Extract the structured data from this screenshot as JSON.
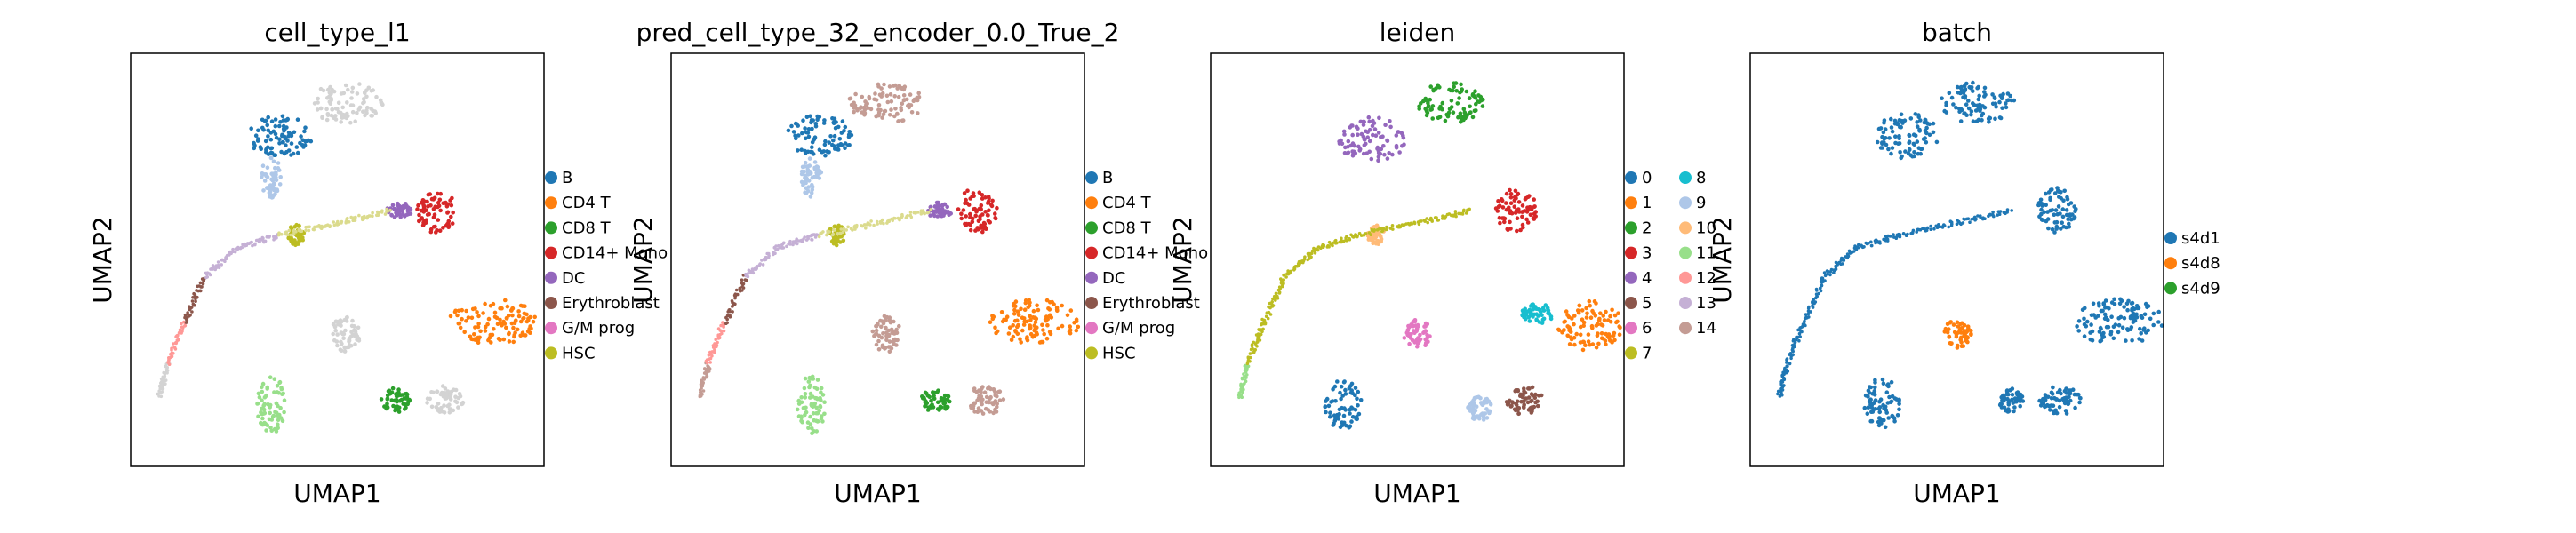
{
  "chart_data": [
    {
      "type": "scatter",
      "title": "cell_type_l1",
      "xlabel": "UMAP1",
      "ylabel": "UMAP2",
      "grid": false,
      "legend_position": "right",
      "legend": [
        {
          "label": "B",
          "color": "#1f77b4"
        },
        {
          "label": "CD4 T",
          "color": "#ff7f0e"
        },
        {
          "label": "CD8 T",
          "color": "#2ca02c"
        },
        {
          "label": "CD14+ Mono",
          "color": "#d62728"
        },
        {
          "label": "DC",
          "color": "#9467bd"
        },
        {
          "label": "Erythroblast",
          "color": "#8c564b"
        },
        {
          "label": "G/M prog",
          "color": "#e377c2"
        },
        {
          "label": "HSC",
          "color": "#bcbd22"
        }
      ],
      "clusters": [
        {
          "cx": 5.2,
          "cy": 8.8,
          "rx": 0.9,
          "ry": 0.5,
          "color": "#d3d3d3"
        },
        {
          "cx": 3.6,
          "cy": 8.0,
          "rx": 0.8,
          "ry": 0.5,
          "color": "#1f77b4"
        },
        {
          "cx": 3.4,
          "cy": 7.0,
          "rx": 0.25,
          "ry": 0.5,
          "color": "#aec7e8"
        },
        {
          "cx": 7.4,
          "cy": 6.2,
          "rx": 0.5,
          "ry": 0.55,
          "color": "#d62728"
        },
        {
          "cx": 6.5,
          "cy": 6.2,
          "rx": 0.3,
          "ry": 0.2,
          "color": "#9467bd"
        },
        {
          "cx": 4.0,
          "cy": 5.6,
          "rx": 0.2,
          "ry": 0.25,
          "color": "#bcbd22"
        },
        {
          "cx": 8.8,
          "cy": 3.5,
          "rx": 1.1,
          "ry": 0.55,
          "color": "#ff7f0e"
        },
        {
          "cx": 5.2,
          "cy": 3.2,
          "rx": 0.35,
          "ry": 0.45,
          "color": "#d3d3d3"
        },
        {
          "cx": 3.4,
          "cy": 1.5,
          "rx": 0.35,
          "ry": 0.7,
          "color": "#98df8a"
        },
        {
          "cx": 6.4,
          "cy": 1.6,
          "rx": 0.35,
          "ry": 0.3,
          "color": "#2ca02c"
        },
        {
          "cx": 7.6,
          "cy": 1.6,
          "rx": 0.45,
          "ry": 0.35,
          "color": "#d3d3d3"
        }
      ],
      "trajectory": [
        {
          "x": 0.7,
          "y": 1.7,
          "color": "#d3d3d3"
        },
        {
          "x": 0.9,
          "y": 2.5,
          "color": "#ff9896"
        },
        {
          "x": 1.3,
          "y": 3.5,
          "color": "#8c564b"
        },
        {
          "x": 1.8,
          "y": 4.6,
          "color": "#c5b0d5"
        },
        {
          "x": 2.6,
          "y": 5.3,
          "color": "#c5b0d5"
        },
        {
          "x": 3.6,
          "y": 5.6,
          "color": "#dbdb8d"
        },
        {
          "x": 5.0,
          "y": 5.9,
          "color": "#dbdb8d"
        },
        {
          "x": 6.3,
          "y": 6.2,
          "color": "#c5b0d5"
        }
      ]
    },
    {
      "type": "scatter",
      "title": "pred_cell_type_32_encoder_0.0_True_2",
      "xlabel": "UMAP1",
      "ylabel": "UMAP2",
      "grid": false,
      "legend_position": "right",
      "legend": [
        {
          "label": "B",
          "color": "#1f77b4"
        },
        {
          "label": "CD4 T",
          "color": "#ff7f0e"
        },
        {
          "label": "CD8 T",
          "color": "#2ca02c"
        },
        {
          "label": "CD14+ Mono",
          "color": "#d62728"
        },
        {
          "label": "DC",
          "color": "#9467bd"
        },
        {
          "label": "Erythroblast",
          "color": "#8c564b"
        },
        {
          "label": "G/M prog",
          "color": "#e377c2"
        },
        {
          "label": "HSC",
          "color": "#bcbd22"
        }
      ],
      "clusters": [
        {
          "cx": 5.2,
          "cy": 8.8,
          "rx": 0.9,
          "ry": 0.5,
          "color": "#c49c94"
        },
        {
          "cx": 3.6,
          "cy": 8.0,
          "rx": 0.8,
          "ry": 0.5,
          "color": "#1f77b4"
        },
        {
          "cx": 3.4,
          "cy": 7.0,
          "rx": 0.25,
          "ry": 0.5,
          "color": "#aec7e8"
        },
        {
          "cx": 7.4,
          "cy": 6.2,
          "rx": 0.5,
          "ry": 0.55,
          "color": "#d62728"
        },
        {
          "cx": 6.5,
          "cy": 6.2,
          "rx": 0.3,
          "ry": 0.2,
          "color": "#9467bd"
        },
        {
          "cx": 4.0,
          "cy": 5.6,
          "rx": 0.2,
          "ry": 0.25,
          "color": "#bcbd22"
        },
        {
          "cx": 8.8,
          "cy": 3.5,
          "rx": 1.1,
          "ry": 0.55,
          "color": "#ff7f0e"
        },
        {
          "cx": 5.2,
          "cy": 3.2,
          "rx": 0.35,
          "ry": 0.45,
          "color": "#c49c94"
        },
        {
          "cx": 3.4,
          "cy": 1.5,
          "rx": 0.35,
          "ry": 0.7,
          "color": "#98df8a"
        },
        {
          "cx": 6.4,
          "cy": 1.6,
          "rx": 0.35,
          "ry": 0.3,
          "color": "#2ca02c"
        },
        {
          "cx": 7.6,
          "cy": 1.6,
          "rx": 0.45,
          "ry": 0.35,
          "color": "#c49c94"
        }
      ],
      "trajectory": [
        {
          "x": 0.7,
          "y": 1.7,
          "color": "#c49c94"
        },
        {
          "x": 0.9,
          "y": 2.5,
          "color": "#ff9896"
        },
        {
          "x": 1.3,
          "y": 3.5,
          "color": "#8c564b"
        },
        {
          "x": 1.8,
          "y": 4.6,
          "color": "#c5b0d5"
        },
        {
          "x": 2.6,
          "y": 5.3,
          "color": "#c5b0d5"
        },
        {
          "x": 3.6,
          "y": 5.6,
          "color": "#dbdb8d"
        },
        {
          "x": 5.0,
          "y": 5.9,
          "color": "#dbdb8d"
        },
        {
          "x": 6.3,
          "y": 6.2,
          "color": "#c5b0d5"
        }
      ]
    },
    {
      "type": "scatter",
      "title": "leiden",
      "xlabel": "UMAP1",
      "ylabel": "UMAP2",
      "grid": false,
      "legend_position": "right",
      "legend": [
        {
          "label": "0",
          "color": "#1f77b4"
        },
        {
          "label": "1",
          "color": "#ff7f0e"
        },
        {
          "label": "2",
          "color": "#2ca02c"
        },
        {
          "label": "3",
          "color": "#d62728"
        },
        {
          "label": "4",
          "color": "#9467bd"
        },
        {
          "label": "5",
          "color": "#8c564b"
        },
        {
          "label": "6",
          "color": "#e377c2"
        },
        {
          "label": "7",
          "color": "#bcbd22"
        },
        {
          "label": "8",
          "color": "#17becf"
        },
        {
          "label": "9",
          "color": "#aec7e8"
        },
        {
          "label": "10",
          "color": "#ffbb78"
        },
        {
          "label": "11",
          "color": "#98df8a"
        },
        {
          "label": "12",
          "color": "#ff9896"
        },
        {
          "label": "13",
          "color": "#c5b0d5"
        },
        {
          "label": "14",
          "color": "#c49c94"
        }
      ],
      "clusters": [
        {
          "cx": 5.8,
          "cy": 8.8,
          "rx": 0.8,
          "ry": 0.5,
          "color": "#2ca02c"
        },
        {
          "cx": 3.9,
          "cy": 7.9,
          "rx": 0.8,
          "ry": 0.55,
          "color": "#9467bd"
        },
        {
          "cx": 7.4,
          "cy": 6.2,
          "rx": 0.5,
          "ry": 0.55,
          "color": "#d62728"
        },
        {
          "cx": 4.0,
          "cy": 5.6,
          "rx": 0.2,
          "ry": 0.25,
          "color": "#ffbb78"
        },
        {
          "cx": 7.9,
          "cy": 3.7,
          "rx": 0.4,
          "ry": 0.25,
          "color": "#17becf"
        },
        {
          "cx": 9.2,
          "cy": 3.4,
          "rx": 0.8,
          "ry": 0.6,
          "color": "#ff7f0e"
        },
        {
          "cx": 5.0,
          "cy": 3.2,
          "rx": 0.35,
          "ry": 0.35,
          "color": "#e377c2"
        },
        {
          "cx": 3.2,
          "cy": 1.5,
          "rx": 0.45,
          "ry": 0.6,
          "color": "#1f77b4"
        },
        {
          "cx": 6.5,
          "cy": 1.4,
          "rx": 0.3,
          "ry": 0.3,
          "color": "#aec7e8"
        },
        {
          "cx": 7.6,
          "cy": 1.6,
          "rx": 0.45,
          "ry": 0.35,
          "color": "#8c564b"
        }
      ],
      "trajectory": [
        {
          "x": 0.7,
          "y": 1.7,
          "color": "#98df8a"
        },
        {
          "x": 0.9,
          "y": 2.5,
          "color": "#bcbd22"
        },
        {
          "x": 1.3,
          "y": 3.5,
          "color": "#bcbd22"
        },
        {
          "x": 1.8,
          "y": 4.6,
          "color": "#bcbd22"
        },
        {
          "x": 2.6,
          "y": 5.3,
          "color": "#bcbd22"
        },
        {
          "x": 3.6,
          "y": 5.6,
          "color": "#bcbd22"
        },
        {
          "x": 5.0,
          "y": 5.9,
          "color": "#bcbd22"
        },
        {
          "x": 6.3,
          "y": 6.2,
          "color": "#c5b0d5"
        }
      ]
    },
    {
      "type": "scatter",
      "title": "batch",
      "xlabel": "UMAP1",
      "ylabel": "UMAP2",
      "grid": false,
      "legend_position": "right",
      "legend": [
        {
          "label": "s4d1",
          "color": "#1f77b4"
        },
        {
          "label": "s4d8",
          "color": "#ff7f0e"
        },
        {
          "label": "s4d9",
          "color": "#2ca02c"
        }
      ],
      "clusters": [
        {
          "cx": 5.5,
          "cy": 8.8,
          "rx": 0.9,
          "ry": 0.5,
          "color": "#1f77b4"
        },
        {
          "cx": 3.8,
          "cy": 8.0,
          "rx": 0.8,
          "ry": 0.55,
          "color": "#1f77b4"
        },
        {
          "cx": 7.4,
          "cy": 6.2,
          "rx": 0.5,
          "ry": 0.55,
          "color": "#1f77b4"
        },
        {
          "cx": 8.9,
          "cy": 3.5,
          "rx": 1.1,
          "ry": 0.55,
          "color": "#1f77b4"
        },
        {
          "cx": 5.0,
          "cy": 3.2,
          "rx": 0.35,
          "ry": 0.35,
          "color": "#ff7f0e"
        },
        {
          "cx": 3.2,
          "cy": 1.5,
          "rx": 0.45,
          "ry": 0.65,
          "color": "#1f77b4"
        },
        {
          "cx": 6.3,
          "cy": 1.6,
          "rx": 0.3,
          "ry": 0.3,
          "color": "#1f77b4"
        },
        {
          "cx": 7.5,
          "cy": 1.6,
          "rx": 0.5,
          "ry": 0.35,
          "color": "#1f77b4"
        }
      ],
      "trajectory": [
        {
          "x": 0.7,
          "y": 1.7,
          "color": "#1f77b4"
        },
        {
          "x": 0.9,
          "y": 2.5,
          "color": "#1f77b4"
        },
        {
          "x": 1.3,
          "y": 3.5,
          "color": "#1f77b4"
        },
        {
          "x": 1.8,
          "y": 4.6,
          "color": "#1f77b4"
        },
        {
          "x": 2.6,
          "y": 5.3,
          "color": "#1f77b4"
        },
        {
          "x": 3.6,
          "y": 5.6,
          "color": "#1f77b4"
        },
        {
          "x": 5.0,
          "y": 5.9,
          "color": "#1f77b4"
        },
        {
          "x": 6.3,
          "y": 6.2,
          "color": "#1f77b4"
        }
      ]
    }
  ]
}
